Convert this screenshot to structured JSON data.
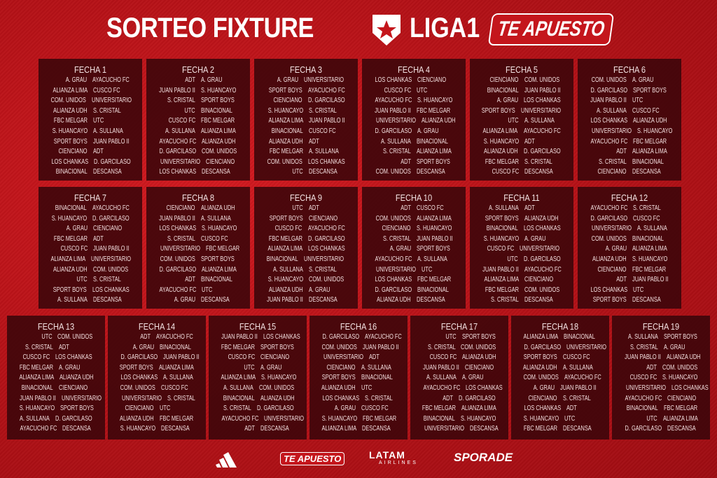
{
  "header": {
    "title": "SORTEO FIXTURE",
    "league": "LIGA1",
    "sponsor": "TE APUESTO"
  },
  "colors": {
    "background": "#c4161c",
    "panel": "#3a060a",
    "text": "#f2dede"
  },
  "fechas": [
    {
      "title": "FECHA 1",
      "matches": [
        [
          "A. GRAU",
          "AYACUCHO FC"
        ],
        [
          "ALIANZA LIMA",
          "CUSCO FC"
        ],
        [
          "COM. UNIDOS",
          "UNIVERSITARIO"
        ],
        [
          "ALIANZA UDH",
          "S. CRISTAL"
        ],
        [
          "FBC MELGAR",
          "UTC"
        ],
        [
          "S. HUANCAYO",
          "A. SULLANA"
        ],
        [
          "SPORT BOYS",
          "JUAN PABLO II"
        ],
        [
          "CIENCIANO",
          "ADT"
        ],
        [
          "LOS CHANKAS",
          "D. GARCILASO"
        ],
        [
          "BINACIONAL",
          "DESCANSA"
        ]
      ]
    },
    {
      "title": "FECHA 2",
      "matches": [
        [
          "ADT",
          "A. GRAU"
        ],
        [
          "JUAN PABLO II",
          "S. HUANCAYO"
        ],
        [
          "S. CRISTAL",
          "SPORT BOYS"
        ],
        [
          "UTC",
          "BINACIONAL"
        ],
        [
          "CUSCO FC",
          "FBC MELGAR"
        ],
        [
          "A. SULLANA",
          "ALIANZA LIMA"
        ],
        [
          "AYACUCHO FC",
          "ALIANZA UDH"
        ],
        [
          "D. GARCILASO",
          "COM. UNIDOS"
        ],
        [
          "UNIVERSITARIO",
          "CIENCIANO"
        ],
        [
          "LOS CHANKAS",
          "DESCANSA"
        ]
      ]
    },
    {
      "title": "FECHA 3",
      "matches": [
        [
          "A. GRAU",
          "UNIVERSITARIO"
        ],
        [
          "SPORT BOYS",
          "AYACUCHO FC"
        ],
        [
          "CIENCIANO",
          "D. GARCILASO"
        ],
        [
          "S. HUANCAYO",
          "S. CRISTAL"
        ],
        [
          "ALIANZA LIMA",
          "JUAN PABLO II"
        ],
        [
          "BINACIONAL",
          "CUSCO FC"
        ],
        [
          "ALIANZA UDH",
          "ADT"
        ],
        [
          "FBC MELGAR",
          "A. SULLANA"
        ],
        [
          "COM. UNIDOS",
          "LOS CHANKAS"
        ],
        [
          "UTC",
          "DESCANSA"
        ]
      ]
    },
    {
      "title": "FECHA 4",
      "matches": [
        [
          "LOS CHANKAS",
          "CIENCIANO"
        ],
        [
          "CUSCO FC",
          "UTC"
        ],
        [
          "AYACUCHO FC",
          "S. HUANCAYO"
        ],
        [
          "JUAN PABLO II",
          "FBC MELGAR"
        ],
        [
          "UNIVERSITARIO",
          "ALIANZA UDH"
        ],
        [
          "D. GARCILASO",
          "A. GRAU"
        ],
        [
          "A. SULLANA",
          "BINACIONAL"
        ],
        [
          "S. CRISTAL",
          "ALIANZA LIMA"
        ],
        [
          "ADT",
          "SPORT BOYS"
        ],
        [
          "COM. UNIDOS",
          "DESCANSA"
        ]
      ]
    },
    {
      "title": "FECHA 5",
      "matches": [
        [
          "CIENCIANO",
          "COM. UNIDOS"
        ],
        [
          "BINACIONAL",
          "JUAN PABLO II"
        ],
        [
          "A. GRAU",
          "LOS CHANKAS"
        ],
        [
          "SPORT BOYS",
          "UNIVERSITARIO"
        ],
        [
          "UTC",
          "A. SULLANA"
        ],
        [
          "ALIANZA LIMA",
          "AYACUCHO FC"
        ],
        [
          "S. HUANCAYO",
          "ADT"
        ],
        [
          "ALIANZA UDH",
          "D. GARCILASO"
        ],
        [
          "FBC MELGAR",
          "S. CRISTAL"
        ],
        [
          "CUSCO FC",
          "DESCANSA"
        ]
      ]
    },
    {
      "title": "FECHA 6",
      "matches": [
        [
          "COM. UNIDOS",
          "A. GRAU"
        ],
        [
          "D. GARCILASO",
          "SPORT BOYS"
        ],
        [
          "JUAN PABLO II",
          "UTC"
        ],
        [
          "A. SULLANA",
          "CUSCO FC"
        ],
        [
          "LOS CHANKAS",
          "ALIANZA UDH"
        ],
        [
          "UNIVERSITARIO",
          "S. HUANCAYO"
        ],
        [
          "AYACUCHO FC",
          "FBC MELGAR"
        ],
        [
          "ADT",
          "ALIANZA LIMA"
        ],
        [
          "S. CRISTAL",
          "BINACIONAL"
        ],
        [
          "CIENCIANO",
          "DESCANSA"
        ]
      ]
    },
    {
      "title": "FECHA 7",
      "matches": [
        [
          "BINACIONAL",
          "AYACUCHO FC"
        ],
        [
          "S. HUANCAYO",
          "D. GARCILASO"
        ],
        [
          "A. GRAU",
          "CIENCIANO"
        ],
        [
          "FBC MELGAR",
          "ADT"
        ],
        [
          "CUSCO FC",
          "JUAN PABLO II"
        ],
        [
          "ALIANZA LIMA",
          "UNIVERSITARIO"
        ],
        [
          "ALIANZA UDH",
          "COM. UNIDOS"
        ],
        [
          "UTC",
          "S. CRISTAL"
        ],
        [
          "SPORT BOYS",
          "LOS CHANKAS"
        ],
        [
          "A. SULLANA",
          "DESCANSA"
        ]
      ]
    },
    {
      "title": "FECHA 8",
      "matches": [
        [
          "CIENCIANO",
          "ALIANZA UDH"
        ],
        [
          "JUAN PABLO II",
          "A. SULLANA"
        ],
        [
          "LOS CHANKAS",
          "S. HUANCAYO"
        ],
        [
          "S. CRISTAL",
          "CUSCO FC"
        ],
        [
          "UNIVERSITARIO",
          "FBC MELGAR"
        ],
        [
          "COM. UNIDOS",
          "SPORT BOYS"
        ],
        [
          "D. GARCILASO",
          "ALIANZA LIMA"
        ],
        [
          "ADT",
          "BINACIONAL"
        ],
        [
          "AYACUCHO FC",
          "UTC"
        ],
        [
          "A. GRAU",
          "DESCANSA"
        ]
      ]
    },
    {
      "title": "FECHA 9",
      "matches": [
        [
          "UTC",
          "ADT"
        ],
        [
          "SPORT BOYS",
          "CIENCIANO"
        ],
        [
          "CUSCO FC",
          "AYACUCHO FC"
        ],
        [
          "FBC MELGAR",
          "D. GARCILASO"
        ],
        [
          "ALIANZA LIMA",
          "LOS CHANKAS"
        ],
        [
          "BINACIONAL",
          "UNIVERSITARIO"
        ],
        [
          "A. SULLANA",
          "S. CRISTAL"
        ],
        [
          "S. HUANCAYO",
          "COM. UNIDOS"
        ],
        [
          "ALIANZA UDH",
          "A. GRAU"
        ],
        [
          "JUAN PABLO II",
          "DESCANSA"
        ]
      ]
    },
    {
      "title": "FECHA 10",
      "matches": [
        [
          "ADT",
          "CUSCO FC"
        ],
        [
          "COM. UNIDOS",
          "ALIANZA LIMA"
        ],
        [
          "CIENCIANO",
          "S. HUANCAYO"
        ],
        [
          "S. CRISTAL",
          "JUAN PABLO II"
        ],
        [
          "A. GRAU",
          "SPORT BOYS"
        ],
        [
          "AYACUCHO FC",
          "A. SULLANA"
        ],
        [
          "UNIVERSITARIO",
          "UTC"
        ],
        [
          "LOS CHANKAS",
          "FBC MELGAR"
        ],
        [
          "D. GARCILASO",
          "BINACIONAL"
        ],
        [
          "ALIANZA UDH",
          "DESCANSA"
        ]
      ]
    },
    {
      "title": "FECHA 11",
      "matches": [
        [
          "A. SULLANA",
          "ADT"
        ],
        [
          "SPORT BOYS",
          "ALIANZA UDH"
        ],
        [
          "BINACIONAL",
          "LOS CHANKAS"
        ],
        [
          "S. HUANCAYO",
          "A. GRAU"
        ],
        [
          "CUSCO FC",
          "UNIVERSITARIO"
        ],
        [
          "UTC",
          "D. GARCILASO"
        ],
        [
          "JUAN PABLO II",
          "AYACUCHO FC"
        ],
        [
          "ALIANZA LIMA",
          "CIENCIANO"
        ],
        [
          "FBC MELGAR",
          "COM. UNIDOS"
        ],
        [
          "S. CRISTAL",
          "DESCANSA"
        ]
      ]
    },
    {
      "title": "FECHA 12",
      "matches": [
        [
          "AYACUCHO FC",
          "S. CRISTAL"
        ],
        [
          "D. GARCILASO",
          "CUSCO FC"
        ],
        [
          "UNIVERSITARIO",
          "A. SULLANA"
        ],
        [
          "COM. UNIDOS",
          "BINACIONAL"
        ],
        [
          "A. GRAU",
          "ALIANZA LIMA"
        ],
        [
          "ALIANZA UDH",
          "S. HUANCAYO"
        ],
        [
          "CIENCIANO",
          "FBC MELGAR"
        ],
        [
          "ADT",
          "JUAN PABLO II"
        ],
        [
          "LOS CHANKAS",
          "UTC"
        ],
        [
          "SPORT BOYS",
          "DESCANSA"
        ]
      ]
    },
    {
      "title": "FECHA 13",
      "matches": [
        [
          "UTC",
          "COM. UNIDOS"
        ],
        [
          "S. CRISTAL",
          "ADT"
        ],
        [
          "CUSCO FC",
          "LOS CHANKAS"
        ],
        [
          "FBC MELGAR",
          "A. GRAU"
        ],
        [
          "ALIANZA LIMA",
          "ALIANZA UDH"
        ],
        [
          "BINACIONAL",
          "CIENCIANO"
        ],
        [
          "JUAN PABLO II",
          "UNIVERSITARIO"
        ],
        [
          "S. HUANCAYO",
          "SPORT BOYS"
        ],
        [
          "A. SULLANA",
          "D. GARCILASO"
        ],
        [
          "AYACUCHO FC",
          "DESCANSA"
        ]
      ]
    },
    {
      "title": "FECHA 14",
      "matches": [
        [
          "ADT",
          "AYACUCHO FC"
        ],
        [
          "A. GRAU",
          "BINACIONAL"
        ],
        [
          "D. GARCILASO",
          "JUAN PABLO II"
        ],
        [
          "SPORT BOYS",
          "ALIANZA LIMA"
        ],
        [
          "LOS CHANKAS",
          "A. SULLANA"
        ],
        [
          "COM. UNIDOS",
          "CUSCO FC"
        ],
        [
          "UNIVERSITARIO",
          "S. CRISTAL"
        ],
        [
          "CIENCIANO",
          "UTC"
        ],
        [
          "ALIANZA UDH",
          "FBC MELGAR"
        ],
        [
          "S. HUANCAYO",
          "DESCANSA"
        ]
      ]
    },
    {
      "title": "FECHA 15",
      "matches": [
        [
          "JUAN PABLO II",
          "LOS CHANKAS"
        ],
        [
          "FBC MELGAR",
          "SPORT BOYS"
        ],
        [
          "CUSCO FC",
          "CIENCIANO"
        ],
        [
          "UTC",
          "A. GRAU"
        ],
        [
          "ALIANZA LIMA",
          "S. HUANCAYO"
        ],
        [
          "A. SULLANA",
          "COM. UNIDOS"
        ],
        [
          "BINACIONAL",
          "ALIANZA UDH"
        ],
        [
          "S. CRISTAL",
          "D. GARCILASO"
        ],
        [
          "AYACUCHO FC",
          "UNIVERSITARIO"
        ],
        [
          "ADT",
          "DESCANSA"
        ]
      ]
    },
    {
      "title": "FECHA 16",
      "matches": [
        [
          "D. GARCILASO",
          "AYACUCHO FC"
        ],
        [
          "COM. UNIDOS",
          "JUAN PABLO II"
        ],
        [
          "UNIVERSITARIO",
          "ADT"
        ],
        [
          "CIENCIANO",
          "A. SULLANA"
        ],
        [
          "SPORT BOYS",
          "BINACIONAL"
        ],
        [
          "ALIANZA UDH",
          "UTC"
        ],
        [
          "LOS CHANKAS",
          "S. CRISTAL"
        ],
        [
          "A. GRAU",
          "CUSCO FC"
        ],
        [
          "S. HUANCAYO",
          "FBC MELGAR"
        ],
        [
          "ALIANZA LIMA",
          "DESCANSA"
        ]
      ]
    },
    {
      "title": "FECHA 17",
      "matches": [
        [
          "UTC",
          "SPORT BOYS"
        ],
        [
          "S. CRISTAL",
          "COM. UNIDOS"
        ],
        [
          "CUSCO FC",
          "ALIANZA UDH"
        ],
        [
          "JUAN PABLO II",
          "CIENCIANO"
        ],
        [
          "A. SULLANA",
          "A. GRAU"
        ],
        [
          "AYACUCHO FC",
          "LOS CHANKAS"
        ],
        [
          "ADT",
          "D. GARCILASO"
        ],
        [
          "FBC MELGAR",
          "ALIANZA LIMA"
        ],
        [
          "BINACIONAL",
          "S. HUANCAYO"
        ],
        [
          "UNIVERSITARIO",
          "DESCANSA"
        ]
      ]
    },
    {
      "title": "FECHA 18",
      "matches": [
        [
          "ALIANZA LIMA",
          "BINACIONAL"
        ],
        [
          "D. GARCILASO",
          "UNIVERSITARIO"
        ],
        [
          "SPORT BOYS",
          "CUSCO FC"
        ],
        [
          "ALIANZA UDH",
          "A. SULLANA"
        ],
        [
          "COM. UNIDOS",
          "AYACUCHO FC"
        ],
        [
          "A. GRAU",
          "JUAN PABLO II"
        ],
        [
          "CIENCIANO",
          "S. CRISTAL"
        ],
        [
          "LOS CHANKAS",
          "ADT"
        ],
        [
          "S. HUANCAYO",
          "UTC"
        ],
        [
          "FBC MELGAR",
          "DESCANSA"
        ]
      ]
    },
    {
      "title": "FECHA 19",
      "matches": [
        [
          "A. SULLANA",
          "SPORT BOYS"
        ],
        [
          "S. CRISTAL",
          "A. GRAU"
        ],
        [
          "JUAN PABLO II",
          "ALIANZA UDH"
        ],
        [
          "ADT",
          "COM. UNIDOS"
        ],
        [
          "CUSCO FC",
          "S. HUANCAYO"
        ],
        [
          "UNIVERSITARIO",
          "LOS CHANKAS"
        ],
        [
          "AYACUCHO FC",
          "CIENCIANO"
        ],
        [
          "BINACIONAL",
          "FBC MELGAR"
        ],
        [
          "UTC",
          "ALIANZA LIMA"
        ],
        [
          "D. GARCILASO",
          "DESCANSA"
        ]
      ]
    }
  ],
  "sponsors": {
    "adidas": "adidas-logo",
    "te_apuesto": "TE APUESTO",
    "latam": "LATAM",
    "latam_sub": "AIRLINES",
    "sporade": "SPORADE"
  }
}
